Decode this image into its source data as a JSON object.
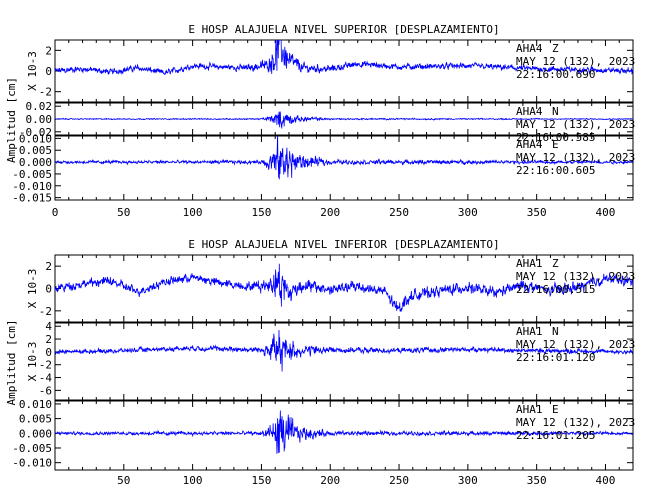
{
  "chart_data": [
    {
      "type": "line",
      "title": "E HOSP ALAJUELA NIVEL SUPERIOR [DESPLAZAMIENTO]",
      "ylabel": "Amplitud [cm]",
      "xlim": [
        0,
        420
      ],
      "xticks": [
        0,
        50,
        100,
        150,
        200,
        250,
        300,
        350,
        400
      ],
      "xtick_labels": [
        "0",
        "50",
        "100",
        "150",
        "200",
        "250",
        "300",
        "350",
        "400"
      ],
      "line_color": "#0000ff",
      "traces": [
        {
          "station": "AHA4",
          "component": "Z",
          "date": "MAY 12 (132), 2023",
          "time": "22:16:00.690",
          "scale_label": "X 10-3",
          "ylim": [
            -3,
            3
          ],
          "yticks": [
            -2,
            0,
            2
          ],
          "ytick_labels": [
            "-2",
            "0",
            "2"
          ],
          "x": [
            0,
            20,
            40,
            60,
            80,
            100,
            120,
            140,
            155,
            160,
            163,
            166,
            170,
            180,
            200,
            220,
            250,
            300,
            350,
            400,
            420
          ],
          "y": [
            0,
            0.2,
            -0.1,
            0.3,
            -0.2,
            0.5,
            0.4,
            0.3,
            0.6,
            1.5,
            2.5,
            1.8,
            1.0,
            0.3,
            0.2,
            0.7,
            0.4,
            0.5,
            0.2,
            0.1,
            0
          ],
          "noise": [
            0.35,
            0.3,
            0.3,
            0.3,
            0.3,
            0.3,
            0.3,
            0.35,
            0.6,
            1.6,
            2.4,
            1.8,
            1.0,
            0.5,
            0.35,
            0.3,
            0.3,
            0.3,
            0.3,
            0.3,
            0.3
          ]
        },
        {
          "station": "AHA4",
          "component": "N",
          "date": "MAY 12 (132), 2023",
          "time": "22:16:00.585",
          "scale_label": "",
          "ylim": [
            -0.025,
            0.025
          ],
          "yticks": [
            -0.02,
            0.0,
            0.02
          ],
          "ytick_labels": [
            "-0.02",
            "0.00",
            "0.02"
          ],
          "x": [
            0,
            150,
            160,
            163,
            166,
            175,
            200,
            420
          ],
          "y": [
            0,
            0,
            0,
            0,
            0,
            0,
            0,
            0
          ],
          "noise": [
            0.0008,
            0.001,
            0.008,
            0.018,
            0.014,
            0.005,
            0.0012,
            0.0008
          ]
        },
        {
          "station": "AHA4",
          "component": "E",
          "date": "MAY 12 (132), 2023",
          "time": "22:16:00.605",
          "scale_label": "",
          "ylim": [
            -0.016,
            0.011
          ],
          "yticks": [
            -0.015,
            -0.01,
            -0.005,
            0.0,
            0.005,
            0.01
          ],
          "ytick_labels": [
            "-0.015",
            "-0.010",
            "-0.005",
            "0.000",
            "0.005",
            "0.010"
          ],
          "x": [
            0,
            150,
            160,
            163,
            166,
            175,
            200,
            420
          ],
          "y": [
            0,
            0,
            0,
            0,
            0,
            0,
            0,
            0
          ],
          "noise": [
            0.0006,
            0.0008,
            0.006,
            0.013,
            0.01,
            0.004,
            0.001,
            0.0006
          ]
        }
      ]
    },
    {
      "type": "line",
      "title": "E HOSP ALAJUELA NIVEL INFERIOR [DESPLAZAMIENTO]",
      "ylabel": "Amplitud [cm]",
      "xlim": [
        0,
        420
      ],
      "xticks": [
        50,
        100,
        150,
        200,
        250,
        300,
        350,
        400
      ],
      "xtick_labels": [
        "50",
        "100",
        "150",
        "200",
        "250",
        "300",
        "350",
        "400"
      ],
      "line_color": "#0000ff",
      "traces": [
        {
          "station": "AHA1",
          "component": "Z",
          "date": "MAY 12 (132), 2023",
          "time": "22:16:00.515",
          "scale_label": "X 10-3",
          "ylim": [
            -3,
            3
          ],
          "yticks": [
            -2,
            0,
            2
          ],
          "ytick_labels": [
            "-2",
            "0",
            "2"
          ],
          "x": [
            0,
            20,
            40,
            60,
            80,
            100,
            120,
            140,
            155,
            160,
            163,
            166,
            170,
            180,
            200,
            220,
            240,
            248,
            260,
            280,
            300,
            320,
            340,
            360,
            380,
            400,
            420
          ],
          "y": [
            0,
            0.4,
            0.7,
            -0.3,
            0.6,
            1.0,
            0.5,
            0.2,
            0.3,
            0.8,
            0.5,
            0.2,
            -0.4,
            0.3,
            -0.1,
            0.2,
            -0.3,
            -1.8,
            -0.6,
            -0.2,
            0.1,
            -0.4,
            0.3,
            -0.2,
            0.1,
            0.9,
            0.6
          ],
          "noise": [
            0.4,
            0.4,
            0.4,
            0.4,
            0.4,
            0.4,
            0.4,
            0.4,
            0.6,
            1.5,
            2.2,
            1.6,
            1.0,
            0.6,
            0.5,
            0.5,
            0.5,
            0.7,
            0.5,
            0.5,
            0.5,
            0.5,
            0.5,
            0.5,
            0.5,
            0.5,
            0.4
          ]
        },
        {
          "station": "AHA1",
          "component": "N",
          "date": "MAY 12 (132), 2023",
          "time": "22:16:01.120",
          "scale_label": "X 10-3",
          "ylim": [
            -7.5,
            4.5
          ],
          "yticks": [
            -6,
            -4,
            -2,
            0,
            2,
            4
          ],
          "ytick_labels": [
            "-6",
            "-4",
            "-2",
            "0",
            "2",
            "4"
          ],
          "x": [
            0,
            50,
            100,
            150,
            160,
            163,
            166,
            175,
            200,
            250,
            300,
            350,
            420
          ],
          "y": [
            0,
            0.2,
            0.6,
            0.3,
            0.5,
            -0.5,
            0.3,
            0.2,
            0.3,
            0.2,
            0.4,
            0.2,
            0
          ],
          "noise": [
            0.35,
            0.35,
            0.4,
            0.5,
            2.6,
            3.5,
            2.4,
            1.2,
            0.5,
            0.4,
            0.4,
            0.4,
            0.35
          ]
        },
        {
          "station": "AHA1",
          "component": "E",
          "date": "MAY 12 (132), 2023",
          "time": "22:16:01.205",
          "scale_label": "",
          "ylim": [
            -0.0125,
            0.011
          ],
          "yticks": [
            -0.01,
            -0.005,
            0.0,
            0.005,
            0.01
          ],
          "ytick_labels": [
            "-0.010",
            "-0.005",
            "0.000",
            "0.005",
            "0.010"
          ],
          "x": [
            0,
            150,
            160,
            163,
            166,
            175,
            200,
            420
          ],
          "y": [
            0,
            0,
            0,
            0,
            0,
            0,
            0,
            0
          ],
          "noise": [
            0.0005,
            0.0007,
            0.005,
            0.01,
            0.008,
            0.003,
            0.0008,
            0.0005
          ]
        }
      ]
    }
  ]
}
